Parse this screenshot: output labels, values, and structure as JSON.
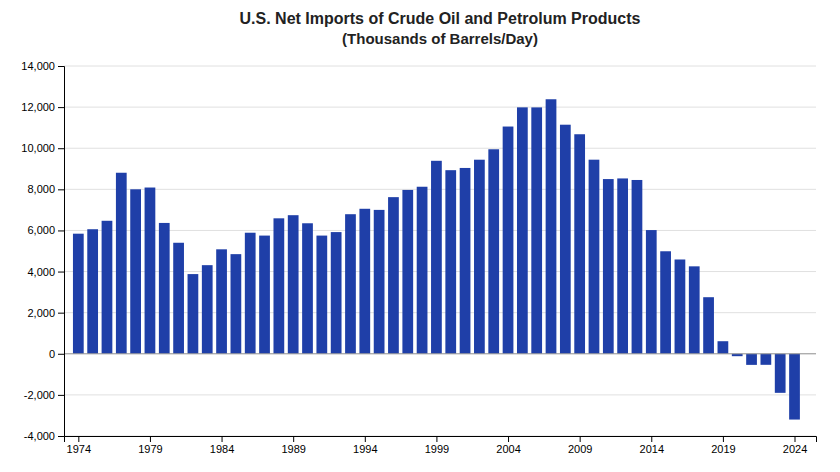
{
  "chart_data": {
    "type": "bar",
    "title": "U.S. Net Imports of Crude Oil and Petrolum Products",
    "subtitle": "(Thousands of Barrels/Day)",
    "x": [
      1974,
      1975,
      1976,
      1977,
      1978,
      1979,
      1980,
      1981,
      1982,
      1983,
      1984,
      1985,
      1986,
      1987,
      1988,
      1989,
      1990,
      1991,
      1992,
      1993,
      1994,
      1995,
      1996,
      1997,
      1998,
      1999,
      2000,
      2001,
      2002,
      2003,
      2004,
      2005,
      2006,
      2007,
      2008,
      2009,
      2010,
      2011,
      2012,
      2013,
      2014,
      2015,
      2016,
      2017,
      2018,
      2019,
      2020,
      2021,
      2022,
      2023,
      2024
    ],
    "values": [
      5842,
      6059,
      6470,
      8807,
      8002,
      8088,
      6365,
      5401,
      3877,
      4311,
      5082,
      4847,
      5889,
      5750,
      6590,
      6742,
      6349,
      5750,
      5920,
      6790,
      7054,
      7000,
      7620,
      7971,
      8126,
      9388,
      8932,
      9040,
      9441,
      9949,
      11055,
      11988,
      11986,
      12382,
      11144,
      10680,
      9442,
      8499,
      8530,
      8455,
      6018,
      4987,
      4587,
      4254,
      2752,
      611,
      -117,
      -540,
      -537,
      -1900,
      -3200
    ],
    "color": "#1f3fa8",
    "xlim": [
      1973,
      2025.5
    ],
    "xticks": [
      1974,
      1979,
      1984,
      1989,
      1994,
      1999,
      2004,
      2009,
      2014,
      2019,
      2024
    ],
    "ylim": [
      -4000,
      14000
    ],
    "yticks": [
      {
        "value": -4000,
        "label": "-4,000"
      },
      {
        "value": -2000,
        "label": "-2,000"
      },
      0,
      {
        "value": 2000,
        "label": "2,000"
      },
      {
        "value": 4000,
        "label": "4,000"
      },
      {
        "value": 6000,
        "label": "6,000"
      },
      {
        "value": 8000,
        "label": "8,000"
      },
      {
        "value": 10000,
        "label": "10,000"
      },
      {
        "value": 12000,
        "label": "12,000"
      },
      {
        "value": 14000,
        "label": "14,000"
      }
    ],
    "grid": true
  }
}
